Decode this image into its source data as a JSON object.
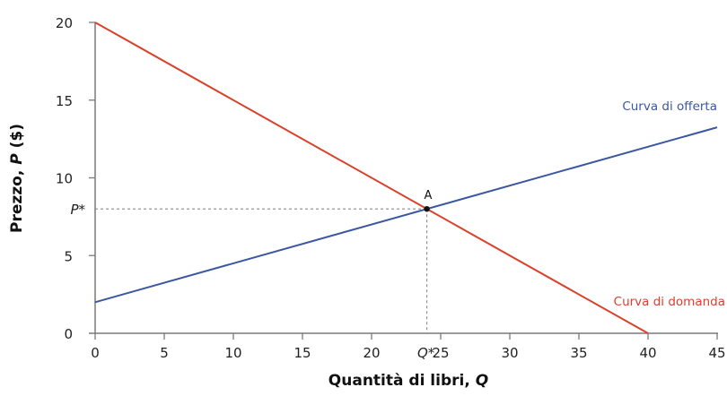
{
  "chart_data": {
    "type": "line",
    "title": "",
    "xlabel": "Quantità di libri, Q",
    "ylabel": "Prezzo, P ($)",
    "xlim": [
      0,
      45
    ],
    "ylim": [
      0,
      20
    ],
    "x_ticks": [
      0,
      5,
      10,
      15,
      20,
      25,
      30,
      35,
      40,
      45
    ],
    "y_ticks": [
      0,
      5,
      10,
      15,
      20
    ],
    "grid": false,
    "series": [
      {
        "name": "Curva di offerta",
        "color": "#3a57a0",
        "x": [
          0,
          45
        ],
        "y": [
          2,
          13.25
        ]
      },
      {
        "name": "Curva di domanda",
        "color": "#d9412b",
        "x": [
          0,
          40
        ],
        "y": [
          20,
          0
        ]
      }
    ],
    "annotations": [
      {
        "label": "A",
        "x": 24,
        "y": 8,
        "type": "point"
      },
      {
        "label": "P*",
        "axis": "y",
        "value": 8
      },
      {
        "label": "Q*",
        "axis": "x",
        "value": 24
      }
    ]
  },
  "labels": {
    "xlabel_main": "Quantità di libri, ",
    "xlabel_var": "Q",
    "ylabel_main": "Prezzo, ",
    "ylabel_var": "P",
    "ylabel_unit": " ($)",
    "supply": "Curva di offerta",
    "demand": "Curva di domanda",
    "point": "A",
    "p_star": "P*",
    "q_star": "Q*"
  },
  "colors": {
    "supply": "#3a57a0",
    "demand": "#d9412b",
    "axis": "#7a7a7a",
    "guide": "#8a8a8a"
  }
}
